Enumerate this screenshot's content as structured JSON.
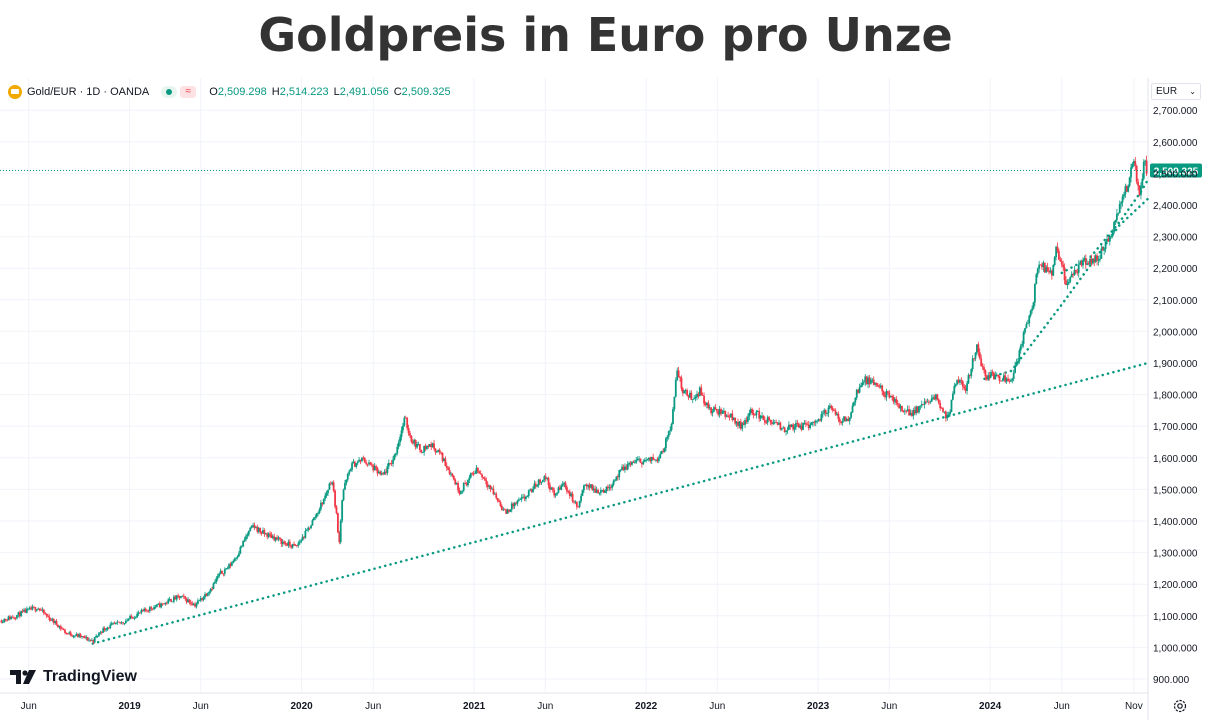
{
  "title": "Goldpreis in Euro pro Unze",
  "legend": {
    "symbol": "Gold/EUR · 1D · OANDA",
    "approx_symbol": "≈",
    "open_label": "O",
    "open": "2,509.298",
    "high_label": "H",
    "high": "2,514.223",
    "low_label": "L",
    "low": "2,491.056",
    "close_label": "C",
    "close": "2,509.325"
  },
  "currency": "EUR",
  "brand": "TradingView",
  "colors": {
    "up": "#089981",
    "down": "#f23645",
    "trend": "#089981",
    "grid": "#f0f3fa",
    "text": "#131722"
  },
  "chart_data": {
    "type": "candlestick",
    "title": "Goldpreis in Euro pro Unze",
    "x_range": [
      "2018-04-01",
      "2024-12-01"
    ],
    "ylim": [
      900,
      2730
    ],
    "y_ticks": [
      900,
      1000,
      1100,
      1200,
      1300,
      1400,
      1500,
      1600,
      1700,
      1800,
      1900,
      2000,
      2100,
      2200,
      2300,
      2400,
      2500,
      2600,
      2700
    ],
    "y_tick_labels": [
      "900.000",
      "1,000.000",
      "1,100.000",
      "1,200.000",
      "1,300.000",
      "1,400.000",
      "1,500.000",
      "1,600.000",
      "1,700.000",
      "1,800.000",
      "1,900.000",
      "2,000.000",
      "2,100.000",
      "2,200.000",
      "2,300.000",
      "2,400.000",
      "2,500.000",
      "2,600.000",
      "2,700.000"
    ],
    "x_ticks": [
      {
        "date": "2018-06-01",
        "label": "Jun",
        "bold": false
      },
      {
        "date": "2019-01-01",
        "label": "2019",
        "bold": true
      },
      {
        "date": "2019-06-01",
        "label": "Jun",
        "bold": false
      },
      {
        "date": "2020-01-01",
        "label": "2020",
        "bold": true
      },
      {
        "date": "2020-06-01",
        "label": "Jun",
        "bold": false
      },
      {
        "date": "2021-01-01",
        "label": "2021",
        "bold": true
      },
      {
        "date": "2021-06-01",
        "label": "Jun",
        "bold": false
      },
      {
        "date": "2022-01-01",
        "label": "2022",
        "bold": true
      },
      {
        "date": "2022-06-01",
        "label": "Jun",
        "bold": false
      },
      {
        "date": "2023-01-01",
        "label": "2023",
        "bold": true
      },
      {
        "date": "2023-06-01",
        "label": "Jun",
        "bold": false
      },
      {
        "date": "2024-01-01",
        "label": "2024",
        "bold": true
      },
      {
        "date": "2024-06-01",
        "label": "Jun",
        "bold": false
      },
      {
        "date": "2024-11-01",
        "label": "Nov",
        "bold": false
      }
    ],
    "last_price": 2509.325,
    "last_price_label": "2,509.325",
    "price_path": [
      [
        "2018-04-01",
        1085
      ],
      [
        "2018-05-01",
        1098
      ],
      [
        "2018-06-01",
        1118
      ],
      [
        "2018-06-20",
        1126
      ],
      [
        "2018-07-10",
        1098
      ],
      [
        "2018-08-01",
        1072
      ],
      [
        "2018-08-20",
        1045
      ],
      [
        "2018-09-15",
        1036
      ],
      [
        "2018-10-15",
        1020
      ],
      [
        "2018-11-01",
        1052
      ],
      [
        "2018-11-15",
        1065
      ],
      [
        "2018-12-15",
        1078
      ],
      [
        "2019-01-15",
        1103
      ],
      [
        "2019-02-15",
        1125
      ],
      [
        "2019-03-10",
        1135
      ],
      [
        "2019-04-01",
        1152
      ],
      [
        "2019-04-20",
        1160
      ],
      [
        "2019-05-20",
        1135
      ],
      [
        "2019-06-05",
        1158
      ],
      [
        "2019-06-25",
        1192
      ],
      [
        "2019-07-10",
        1230
      ],
      [
        "2019-08-01",
        1258
      ],
      [
        "2019-08-20",
        1300
      ],
      [
        "2019-09-05",
        1350
      ],
      [
        "2019-09-20",
        1385
      ],
      [
        "2019-10-10",
        1362
      ],
      [
        "2019-11-01",
        1350
      ],
      [
        "2019-11-25",
        1330
      ],
      [
        "2019-12-20",
        1318
      ],
      [
        "2020-01-10",
        1362
      ],
      [
        "2020-02-01",
        1420
      ],
      [
        "2020-02-20",
        1478
      ],
      [
        "2020-03-05",
        1535
      ],
      [
        "2020-03-15",
        1420
      ],
      [
        "2020-03-20",
        1320
      ],
      [
        "2020-03-28",
        1490
      ],
      [
        "2020-04-15",
        1575
      ],
      [
        "2020-05-10",
        1595
      ],
      [
        "2020-06-01",
        1568
      ],
      [
        "2020-06-20",
        1540
      ],
      [
        "2020-07-15",
        1600
      ],
      [
        "2020-08-07",
        1725
      ],
      [
        "2020-08-20",
        1660
      ],
      [
        "2020-09-10",
        1625
      ],
      [
        "2020-10-01",
        1642
      ],
      [
        "2020-10-20",
        1615
      ],
      [
        "2020-11-15",
        1545
      ],
      [
        "2020-12-01",
        1495
      ],
      [
        "2020-12-20",
        1530
      ],
      [
        "2021-01-06",
        1565
      ],
      [
        "2021-01-25",
        1530
      ],
      [
        "2021-02-15",
        1480
      ],
      [
        "2021-03-08",
        1425
      ],
      [
        "2021-03-25",
        1450
      ],
      [
        "2021-04-20",
        1475
      ],
      [
        "2021-05-15",
        1520
      ],
      [
        "2021-06-01",
        1540
      ],
      [
        "2021-06-20",
        1480
      ],
      [
        "2021-07-10",
        1520
      ],
      [
        "2021-08-09",
        1440
      ],
      [
        "2021-08-25",
        1520
      ],
      [
        "2021-09-15",
        1495
      ],
      [
        "2021-10-10",
        1500
      ],
      [
        "2021-11-10",
        1560
      ],
      [
        "2021-12-01",
        1585
      ],
      [
        "2021-12-20",
        1590
      ],
      [
        "2022-01-10",
        1592
      ],
      [
        "2022-01-25",
        1600
      ],
      [
        "2022-02-10",
        1640
      ],
      [
        "2022-02-25",
        1720
      ],
      [
        "2022-03-08",
        1880
      ],
      [
        "2022-03-20",
        1810
      ],
      [
        "2022-04-10",
        1790
      ],
      [
        "2022-04-25",
        1812
      ],
      [
        "2022-05-15",
        1750
      ],
      [
        "2022-06-10",
        1745
      ],
      [
        "2022-07-01",
        1730
      ],
      [
        "2022-07-20",
        1700
      ],
      [
        "2022-08-15",
        1750
      ],
      [
        "2022-09-10",
        1720
      ],
      [
        "2022-09-28",
        1710
      ],
      [
        "2022-10-20",
        1690
      ],
      [
        "2022-11-10",
        1700
      ],
      [
        "2022-12-05",
        1700
      ],
      [
        "2023-01-01",
        1720
      ],
      [
        "2023-01-25",
        1760
      ],
      [
        "2023-02-15",
        1720
      ],
      [
        "2023-03-10",
        1725
      ],
      [
        "2023-03-20",
        1800
      ],
      [
        "2023-04-10",
        1845
      ],
      [
        "2023-05-05",
        1830
      ],
      [
        "2023-05-25",
        1800
      ],
      [
        "2023-06-20",
        1765
      ],
      [
        "2023-07-15",
        1740
      ],
      [
        "2023-08-15",
        1770
      ],
      [
        "2023-09-10",
        1790
      ],
      [
        "2023-09-28",
        1735
      ],
      [
        "2023-10-05",
        1730
      ],
      [
        "2023-10-20",
        1840
      ],
      [
        "2023-11-10",
        1822
      ],
      [
        "2023-12-04",
        1955
      ],
      [
        "2023-12-20",
        1860
      ],
      [
        "2024-01-10",
        1860
      ],
      [
        "2024-01-25",
        1855
      ],
      [
        "2024-02-15",
        1850
      ],
      [
        "2024-03-01",
        1920
      ],
      [
        "2024-03-15",
        2005
      ],
      [
        "2024-04-01",
        2090
      ],
      [
        "2024-04-12",
        2215
      ],
      [
        "2024-04-25",
        2200
      ],
      [
        "2024-05-10",
        2175
      ],
      [
        "2024-05-20",
        2260
      ],
      [
        "2024-06-10",
        2160
      ],
      [
        "2024-06-25",
        2175
      ],
      [
        "2024-07-10",
        2205
      ],
      [
        "2024-07-25",
        2225
      ],
      [
        "2024-08-15",
        2225
      ],
      [
        "2024-09-01",
        2270
      ],
      [
        "2024-09-15",
        2310
      ],
      [
        "2024-10-01",
        2390
      ],
      [
        "2024-10-20",
        2470
      ],
      [
        "2024-10-31",
        2545
      ],
      [
        "2024-11-08",
        2480
      ],
      [
        "2024-11-14",
        2430
      ],
      [
        "2024-11-22",
        2540
      ],
      [
        "2024-11-25",
        2530
      ],
      [
        "2024-11-28",
        2509
      ]
    ],
    "trendlines": [
      {
        "name": "",
        "points": [
          [
            "2018-10-15",
            1012
          ],
          [
            "2024-12-01",
            1900
          ]
        ]
      },
      {
        "name": "",
        "points": [
          [
            "2023-12-20",
            1850
          ],
          [
            "2024-02-15",
            1875
          ],
          [
            "2024-04-01",
            1965
          ],
          [
            "2024-06-01",
            2085
          ],
          [
            "2024-08-01",
            2210
          ],
          [
            "2024-10-01",
            2335
          ],
          [
            "2024-12-01",
            2420
          ]
        ]
      },
      {
        "name": "",
        "points": [
          [
            "2024-06-01",
            2185
          ],
          [
            "2024-08-01",
            2235
          ],
          [
            "2024-10-01",
            2345
          ],
          [
            "2024-11-15",
            2440
          ],
          [
            "2024-12-01",
            2480
          ]
        ]
      }
    ]
  }
}
